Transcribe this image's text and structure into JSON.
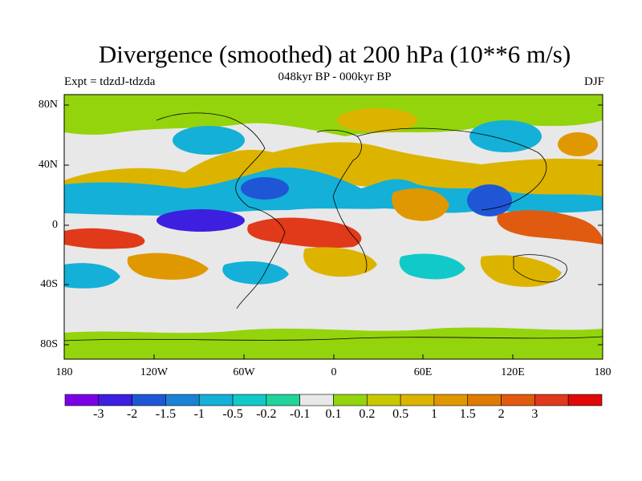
{
  "title": "Divergence (smoothed) at 200 hPa (10**6 m/s)",
  "subtitle": "048kyr BP - 000kyr BP",
  "experiment_label": "Expt = tdzdJ-tdzda",
  "season_label": "DJF",
  "lat_ticks": [
    "80N",
    "40N",
    "0",
    "40S",
    "80S"
  ],
  "lon_ticks": [
    "180",
    "120W",
    "60W",
    "0",
    "60E",
    "120E",
    "180"
  ],
  "colorbar": {
    "colors": [
      "#7b00e6",
      "#3d1fe0",
      "#1e56d6",
      "#1a82d4",
      "#14b0d8",
      "#12c9c9",
      "#22d49c",
      "#e8e8e8",
      "#94d40c",
      "#c8c800",
      "#dcb400",
      "#e09800",
      "#e07a00",
      "#e05a10",
      "#e03a1a",
      "#e00808"
    ],
    "labels": [
      "-3",
      "-2",
      "-1.5",
      "-1",
      "-0.5",
      "-0.2",
      "-0.1",
      "0.1",
      "0.2",
      "0.5",
      "1",
      "1.5",
      "2",
      "3"
    ]
  }
}
